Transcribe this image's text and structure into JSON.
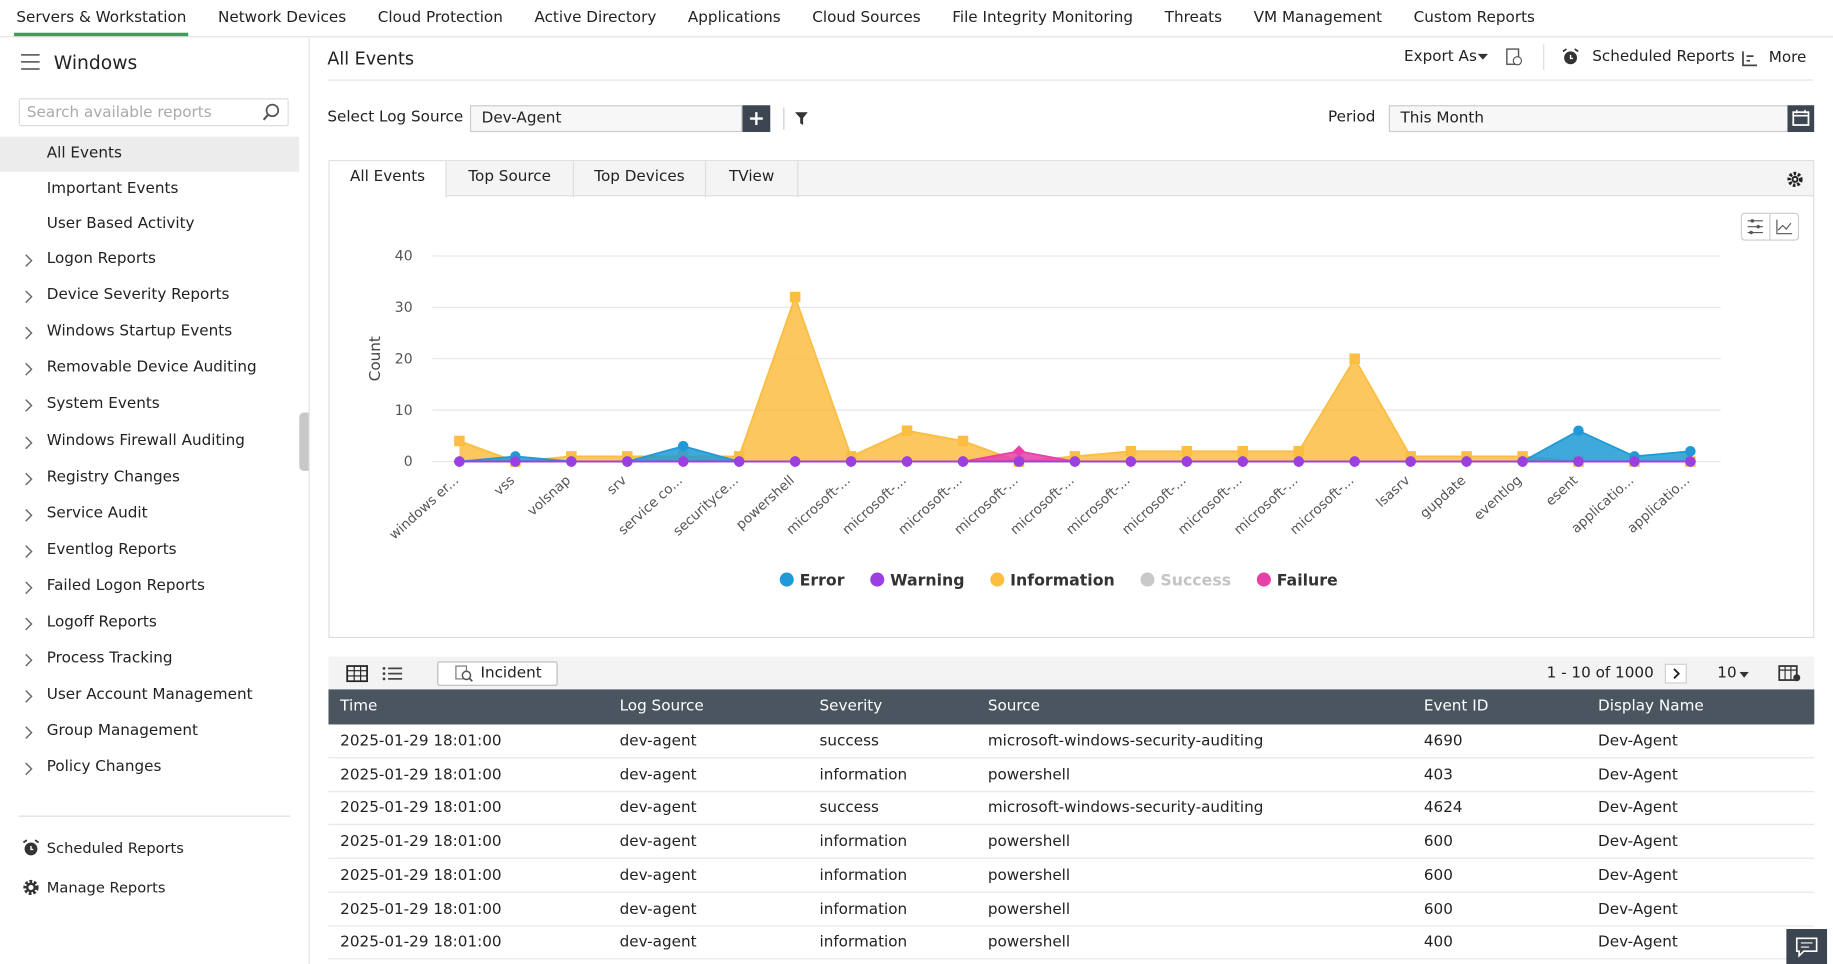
{
  "nav": {
    "items": [
      "Servers & Workstation",
      "Network Devices",
      "Cloud Protection",
      "Active Directory",
      "Applications",
      "Cloud Sources",
      "File Integrity Monitoring",
      "Threats",
      "VM Management",
      "Custom Reports"
    ],
    "active": 0
  },
  "sidebar": {
    "title": "Windows",
    "search_placeholder": "Search available reports",
    "items": [
      "All Events",
      "Important Events",
      "User Based Activity"
    ],
    "active": 0,
    "groups": [
      "Logon Reports",
      "Device Severity Reports",
      "Windows Startup Events",
      "Removable Device Auditing",
      "System Events",
      "Windows Firewall Auditing",
      "Registry Changes",
      "Service Audit",
      "Eventlog Reports",
      "Failed Logon Reports",
      "Logoff Reports",
      "Process Tracking",
      "User Account Management",
      "Group Management",
      "Policy Changes"
    ],
    "footer": [
      "Scheduled Reports",
      "Manage Reports"
    ]
  },
  "header": {
    "title": "All Events",
    "export": "Export As",
    "scheduled": "Scheduled Reports",
    "more": "More"
  },
  "filters": {
    "log_source_label": "Select Log Source",
    "log_source": "Dev-Agent",
    "period_label": "Period",
    "period": "This Month"
  },
  "tabs": {
    "items": [
      "All Events",
      "Top Source",
      "Top Devices",
      "TView"
    ],
    "active": 0
  },
  "chart_data": {
    "type": "area",
    "ylabel": "Count",
    "ylim": [
      0,
      40
    ],
    "yticks": [
      0,
      10,
      20,
      30,
      40
    ],
    "grid": true,
    "legend": "bottom",
    "categories": [
      "windows er...",
      "vss",
      "volsnap",
      "srv",
      "service co...",
      "securityce...",
      "powershell",
      "microsoft-...",
      "microsoft-...",
      "microsoft-...",
      "microsoft-...",
      "microsoft-...",
      "microsoft-...",
      "microsoft-...",
      "microsoft-...",
      "microsoft-...",
      "microsoft-...",
      "lsasrv",
      "gupdate",
      "eventlog",
      "esent",
      "applicatio...",
      "applicatio..."
    ],
    "series": [
      {
        "name": "Information",
        "color": "#fbbd42",
        "marker": "square",
        "values": [
          4,
          0,
          1,
          1,
          1,
          1,
          32,
          1,
          6,
          4,
          0,
          1,
          2,
          2,
          2,
          2,
          20,
          1,
          1,
          1,
          0,
          0,
          0
        ]
      },
      {
        "name": "Error",
        "color": "#1f9ad6",
        "marker": "circle",
        "values": [
          0,
          1,
          0,
          0,
          3,
          0,
          0,
          0,
          0,
          0,
          0,
          0,
          0,
          0,
          0,
          0,
          0,
          0,
          0,
          0,
          6,
          1,
          2
        ]
      },
      {
        "name": "Failure",
        "color": "#e83fa8",
        "marker": "diamond",
        "values": [
          0,
          0,
          0,
          0,
          0,
          0,
          0,
          0,
          0,
          0,
          2,
          0,
          0,
          0,
          0,
          0,
          0,
          0,
          0,
          0,
          0,
          0,
          0
        ]
      },
      {
        "name": "Warning",
        "color": "#9b3fe0",
        "marker": "circle",
        "values": [
          0,
          0,
          0,
          0,
          0,
          0,
          0,
          0,
          0,
          0,
          0,
          0,
          0,
          0,
          0,
          0,
          0,
          0,
          0,
          0,
          0,
          0,
          0
        ]
      },
      {
        "name": "Success",
        "color": "#c9c9c9",
        "marker": "circle",
        "hidden": true,
        "values": [
          null,
          null,
          null,
          null,
          null,
          null,
          null,
          null,
          null,
          null,
          null,
          null,
          null,
          null,
          null,
          null,
          null,
          null,
          null,
          null,
          null,
          null,
          null
        ]
      }
    ],
    "legend_order": [
      1,
      3,
      0,
      4,
      2
    ]
  },
  "table": {
    "incident": "Incident",
    "pagination": "1 - 10 of 1000",
    "page_size": "10",
    "columns": [
      "Time",
      "Log Source",
      "Severity",
      "Source",
      "Event ID",
      "Display Name"
    ],
    "rows": [
      [
        "2025-01-29 18:01:00",
        "dev-agent",
        "success",
        "microsoft-windows-security-auditing",
        4690,
        "Dev-Agent"
      ],
      [
        "2025-01-29 18:01:00",
        "dev-agent",
        "information",
        "powershell",
        403,
        "Dev-Agent"
      ],
      [
        "2025-01-29 18:01:00",
        "dev-agent",
        "success",
        "microsoft-windows-security-auditing",
        4624,
        "Dev-Agent"
      ],
      [
        "2025-01-29 18:01:00",
        "dev-agent",
        "information",
        "powershell",
        600,
        "Dev-Agent"
      ],
      [
        "2025-01-29 18:01:00",
        "dev-agent",
        "information",
        "powershell",
        600,
        "Dev-Agent"
      ],
      [
        "2025-01-29 18:01:00",
        "dev-agent",
        "information",
        "powershell",
        600,
        "Dev-Agent"
      ],
      [
        "2025-01-29 18:01:00",
        "dev-agent",
        "information",
        "powershell",
        400,
        "Dev-Agent"
      ]
    ]
  }
}
